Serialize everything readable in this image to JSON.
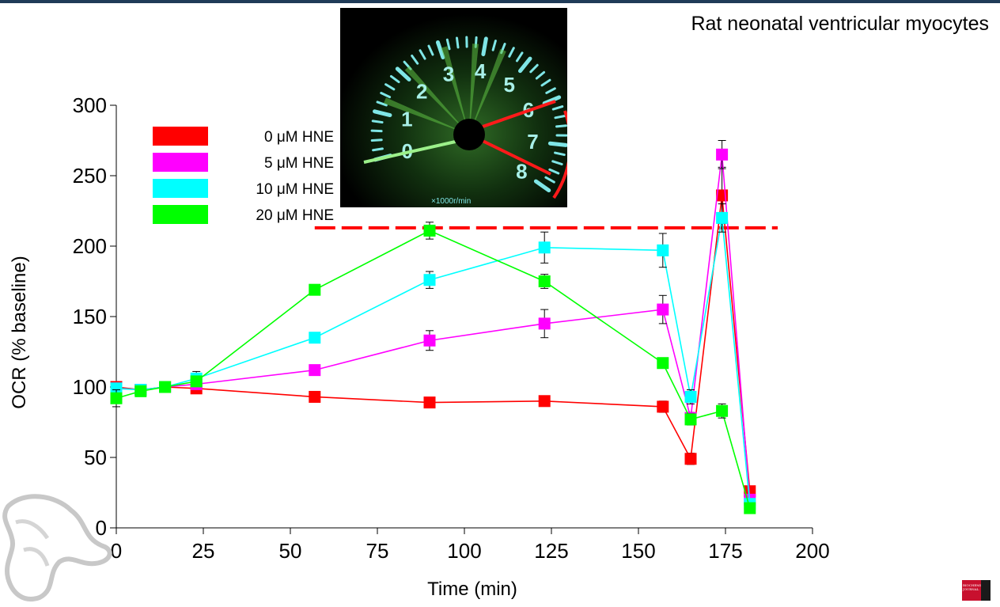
{
  "header": {
    "title": "Rat neonatal ventricular myocytes"
  },
  "gauge": {
    "numbers": [
      "0",
      "1",
      "2",
      "3",
      "4",
      "5",
      "6",
      "7",
      "8"
    ],
    "unit_label": "×1000r/min"
  },
  "journal": {
    "name": "BIOCHEMICAL JOURNAL"
  },
  "colors": {
    "series_0": "#ff0000",
    "series_5": "#ff00ff",
    "series_10": "#00ffff",
    "series_20": "#00ff00",
    "reference_line": "#ff0000"
  },
  "chart_data": {
    "type": "line",
    "xlabel": "Time (min)",
    "ylabel": "OCR (% baseline)",
    "xlim": [
      0,
      200
    ],
    "ylim": [
      0,
      300
    ],
    "xticks": [
      0,
      25,
      50,
      75,
      100,
      125,
      150,
      175,
      200
    ],
    "yticks": [
      0,
      50,
      100,
      150,
      200,
      250,
      300
    ],
    "grid": false,
    "legend_position": "top-left",
    "reference_line": {
      "y": 213,
      "x_range": [
        57,
        190
      ],
      "style": "dashed"
    },
    "series": [
      {
        "name": "0 μM HNE",
        "color": "#ff0000",
        "x": [
          0,
          7,
          14,
          23,
          57,
          90,
          123,
          157,
          165,
          174,
          182
        ],
        "y": [
          100,
          98,
          100,
          99,
          93,
          89,
          90,
          86,
          49,
          236,
          26
        ],
        "err": [
          3,
          3,
          3,
          3,
          2,
          2,
          2,
          4,
          4,
          20,
          3
        ]
      },
      {
        "name": "5 μM HNE",
        "color": "#ff00ff",
        "x": [
          0,
          7,
          14,
          23,
          57,
          90,
          123,
          157,
          165,
          174,
          182
        ],
        "y": [
          99,
          98,
          100,
          102,
          112,
          133,
          145,
          155,
          78,
          265,
          20
        ],
        "err": [
          3,
          3,
          3,
          3,
          3,
          7,
          10,
          10,
          4,
          10,
          3
        ]
      },
      {
        "name": "10 μM HNE",
        "color": "#00ffff",
        "x": [
          0,
          7,
          14,
          23,
          57,
          90,
          123,
          157,
          165,
          174,
          182
        ],
        "y": [
          99,
          98,
          100,
          106,
          135,
          176,
          199,
          197,
          93,
          220,
          17
        ],
        "err": [
          3,
          3,
          3,
          5,
          3,
          6,
          11,
          12,
          5,
          10,
          3
        ]
      },
      {
        "name": "20 μM HNE",
        "color": "#00ff00",
        "x": [
          0,
          7,
          14,
          23,
          57,
          90,
          123,
          157,
          165,
          174,
          182
        ],
        "y": [
          92,
          97,
          100,
          104,
          169,
          211,
          175,
          117,
          77,
          83,
          14
        ],
        "err": [
          6,
          3,
          3,
          3,
          3,
          6,
          5,
          3,
          4,
          5,
          3
        ]
      }
    ]
  }
}
